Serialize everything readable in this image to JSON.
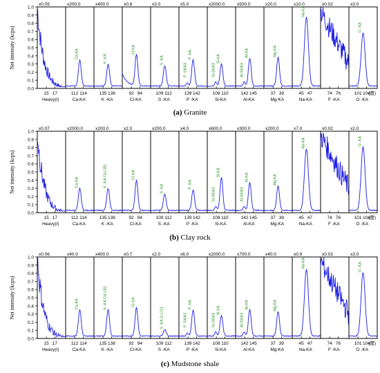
{
  "panels": [
    {
      "id": "a",
      "caption_letter": "(a)",
      "caption_text": "Granite",
      "scales": [
        "x0.05",
        "x200.0",
        "x400.0",
        "x0.8",
        "x3.0",
        "x5.0",
        "x2000.0",
        "x500.0",
        "x20.0",
        "x10.0",
        "x0.02",
        "x3.0"
      ],
      "peak_labels": [
        "",
        "Ca-KA",
        "K -KA",
        "Cl-KA",
        "S -KA",
        "P -KA",
        "Si-KA",
        "Al-KA",
        "Mg-KA",
        "Na-KA",
        "",
        "O -KA"
      ],
      "extra_peak_labels": [
        {
          "section": 5,
          "label": "P -SKA3"
        },
        {
          "section": 6,
          "label": "Si-SKA3"
        },
        {
          "section": 7,
          "label": "Al-SKA3"
        }
      ]
    },
    {
      "id": "b",
      "caption_letter": "(b)",
      "caption_text": "Clay rock",
      "scales": [
        "x0.07",
        "x2000.0",
        "x200.0",
        "x2.0",
        "x200.0",
        "x4.0",
        "x600.0",
        "x300.0",
        "x200.0",
        "x7.0",
        "x0.02",
        "x2.0"
      ],
      "peak_labels": [
        "",
        "Ca-KA",
        "K -KA Cd-LB1",
        "Cl-KA",
        "S -KA",
        "P -KA",
        "Si-KA",
        "Al-KA",
        "Mg-KA",
        "Na-KA",
        "",
        "O -KA"
      ],
      "extra_peak_labels": [
        {
          "section": 6,
          "label": "Si-SKA3"
        },
        {
          "section": 7,
          "label": "Al-SKA3"
        }
      ]
    },
    {
      "id": "c",
      "caption_letter": "(c)",
      "caption_text": "Mudstone shale",
      "scales": [
        "x0.06",
        "x40.0",
        "x400.0",
        "x0.7",
        "x2.0",
        "x6.0",
        "x2000.0",
        "x700.0",
        "x40.0",
        "x0.9",
        "x0.03",
        "x3.0"
      ],
      "peak_labels": [
        "",
        "Ca-KA",
        "K -KA Cd-LB1",
        "Cl-KA",
        "S -KA Zr-LG1",
        "P -KA",
        "Si-KA",
        "Al-KA",
        "Mg-KA",
        "Na-KA",
        "",
        "O -KA"
      ],
      "extra_peak_labels": [
        {
          "section": 5,
          "label": "P -SKA3"
        },
        {
          "section": 6,
          "label": "Si-SKA3"
        },
        {
          "section": 7,
          "label": "Al-SKA3"
        }
      ]
    }
  ],
  "chart_data": {
    "type": "line",
    "ylabel": "Net intensity  (kcps)",
    "y_ticks": [
      "0.0",
      "0.1",
      "0.2",
      "0.3",
      "0.4",
      "0.5",
      "0.6",
      "0.7",
      "0.8",
      "0.9",
      "1.0"
    ],
    "ylim": [
      0,
      1.0
    ],
    "sections": [
      {
        "name": "Heavy(I)",
        "ticks": [
          "15",
          "17"
        ]
      },
      {
        "name": "Ca-KA",
        "ticks": [
          "112",
          "114"
        ]
      },
      {
        "name": "K -KA",
        "ticks": [
          "135",
          "138"
        ]
      },
      {
        "name": "Cl-KA",
        "ticks": [
          "92",
          "94"
        ]
      },
      {
        "name": "S -KA",
        "ticks": [
          "109",
          "112"
        ]
      },
      {
        "name": "P -KA",
        "ticks": [
          "139",
          "142"
        ]
      },
      {
        "name": "Si-KA",
        "ticks": [
          "108",
          "110"
        ]
      },
      {
        "name": "Al-KA",
        "ticks": [
          "142",
          "145"
        ]
      },
      {
        "name": "Mg-KA",
        "ticks": [
          "37",
          "39"
        ]
      },
      {
        "name": "Na-KA",
        "ticks": [
          "45",
          "47"
        ]
      },
      {
        "name": "F -KA",
        "ticks": [
          "74",
          "76"
        ]
      },
      {
        "name": "O -KA",
        "ticks": [
          "101",
          "104"
        ]
      }
    ],
    "unit_label": "(度)",
    "peak_heights": [
      [
        0,
        0.32,
        0.27,
        0.38,
        0.25,
        0.32,
        0.27,
        0.34,
        0.35,
        0.84,
        0,
        0.65
      ],
      [
        0,
        0.27,
        0.27,
        0.37,
        0.2,
        0.25,
        0.4,
        0.34,
        0.3,
        0.75,
        0,
        0.78
      ],
      [
        0,
        0.32,
        0.32,
        0.35,
        0.08,
        0.32,
        0.25,
        0.32,
        0.3,
        0.82,
        0,
        0.78
      ]
    ]
  }
}
